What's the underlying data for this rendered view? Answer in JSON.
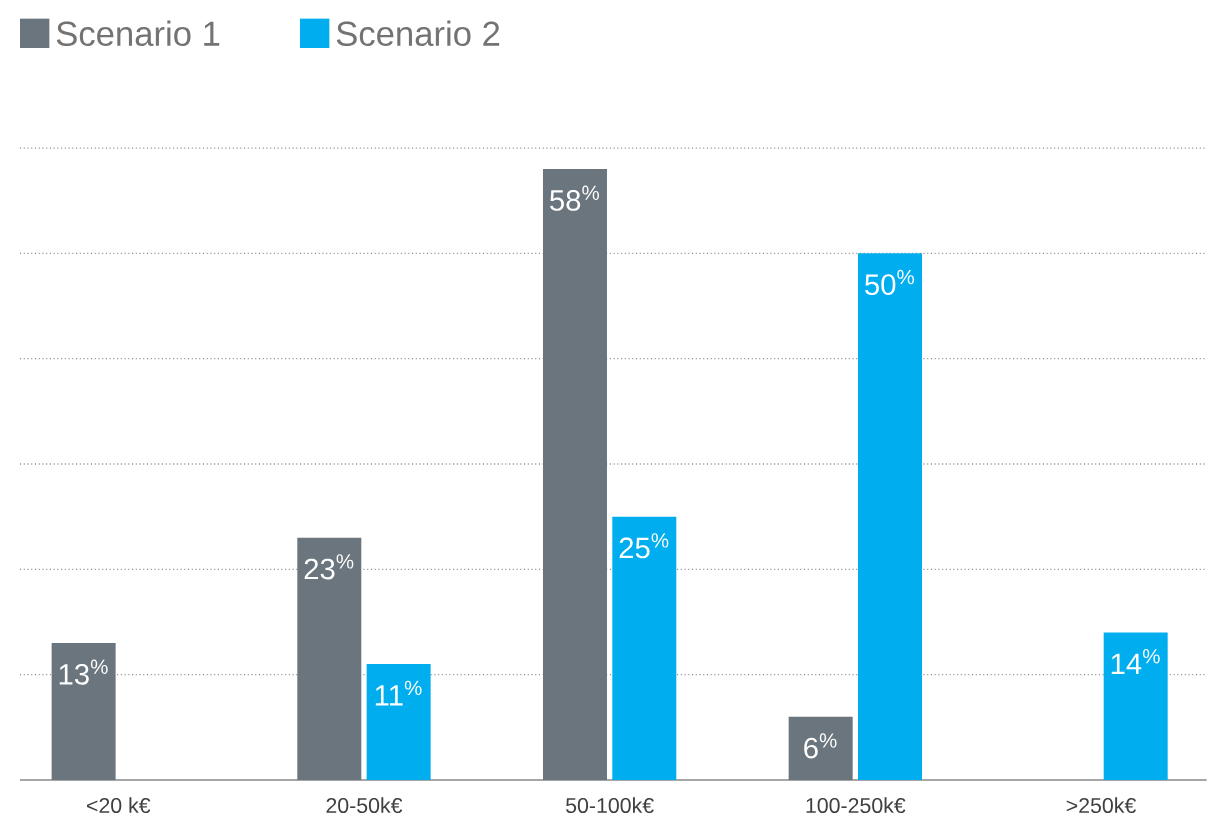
{
  "chart_data": {
    "type": "bar",
    "categories": [
      "<20 k€",
      "20-50k€",
      "50-100k€",
      "100-250k€",
      ">250k€"
    ],
    "series": [
      {
        "name": "Scenario 1",
        "color": "#6b757d",
        "values": [
          13,
          23,
          58,
          6,
          null
        ],
        "value_labels": [
          "13$^{%}$",
          "23$^{%}$",
          "58$^{%}$",
          "6$^{%}$",
          null
        ]
      },
      {
        "name": "Scenario 2",
        "color": "#00aeef",
        "values": [
          null,
          11,
          25,
          50,
          14
        ],
        "value_labels": [
          null,
          "11$^{%}$",
          "25$^{%}$",
          "50$^{%}$",
          "14$^{%}$"
        ]
      }
    ],
    "ylim": [
      0,
      60
    ],
    "yticks": [
      {
        "value": 0,
        "label": null
      },
      {
        "value": 10,
        "label": null
      },
      {
        "value": 20,
        "label": null
      },
      {
        "value": 30,
        "label": null
      },
      {
        "value": 40,
        "label": null
      },
      {
        "value": 50,
        "label": null
      },
      {
        "value": 60,
        "label": null
      }
    ],
    "tick_labels": "x",
    "grid": "y",
    "legend": "top left"
  }
}
